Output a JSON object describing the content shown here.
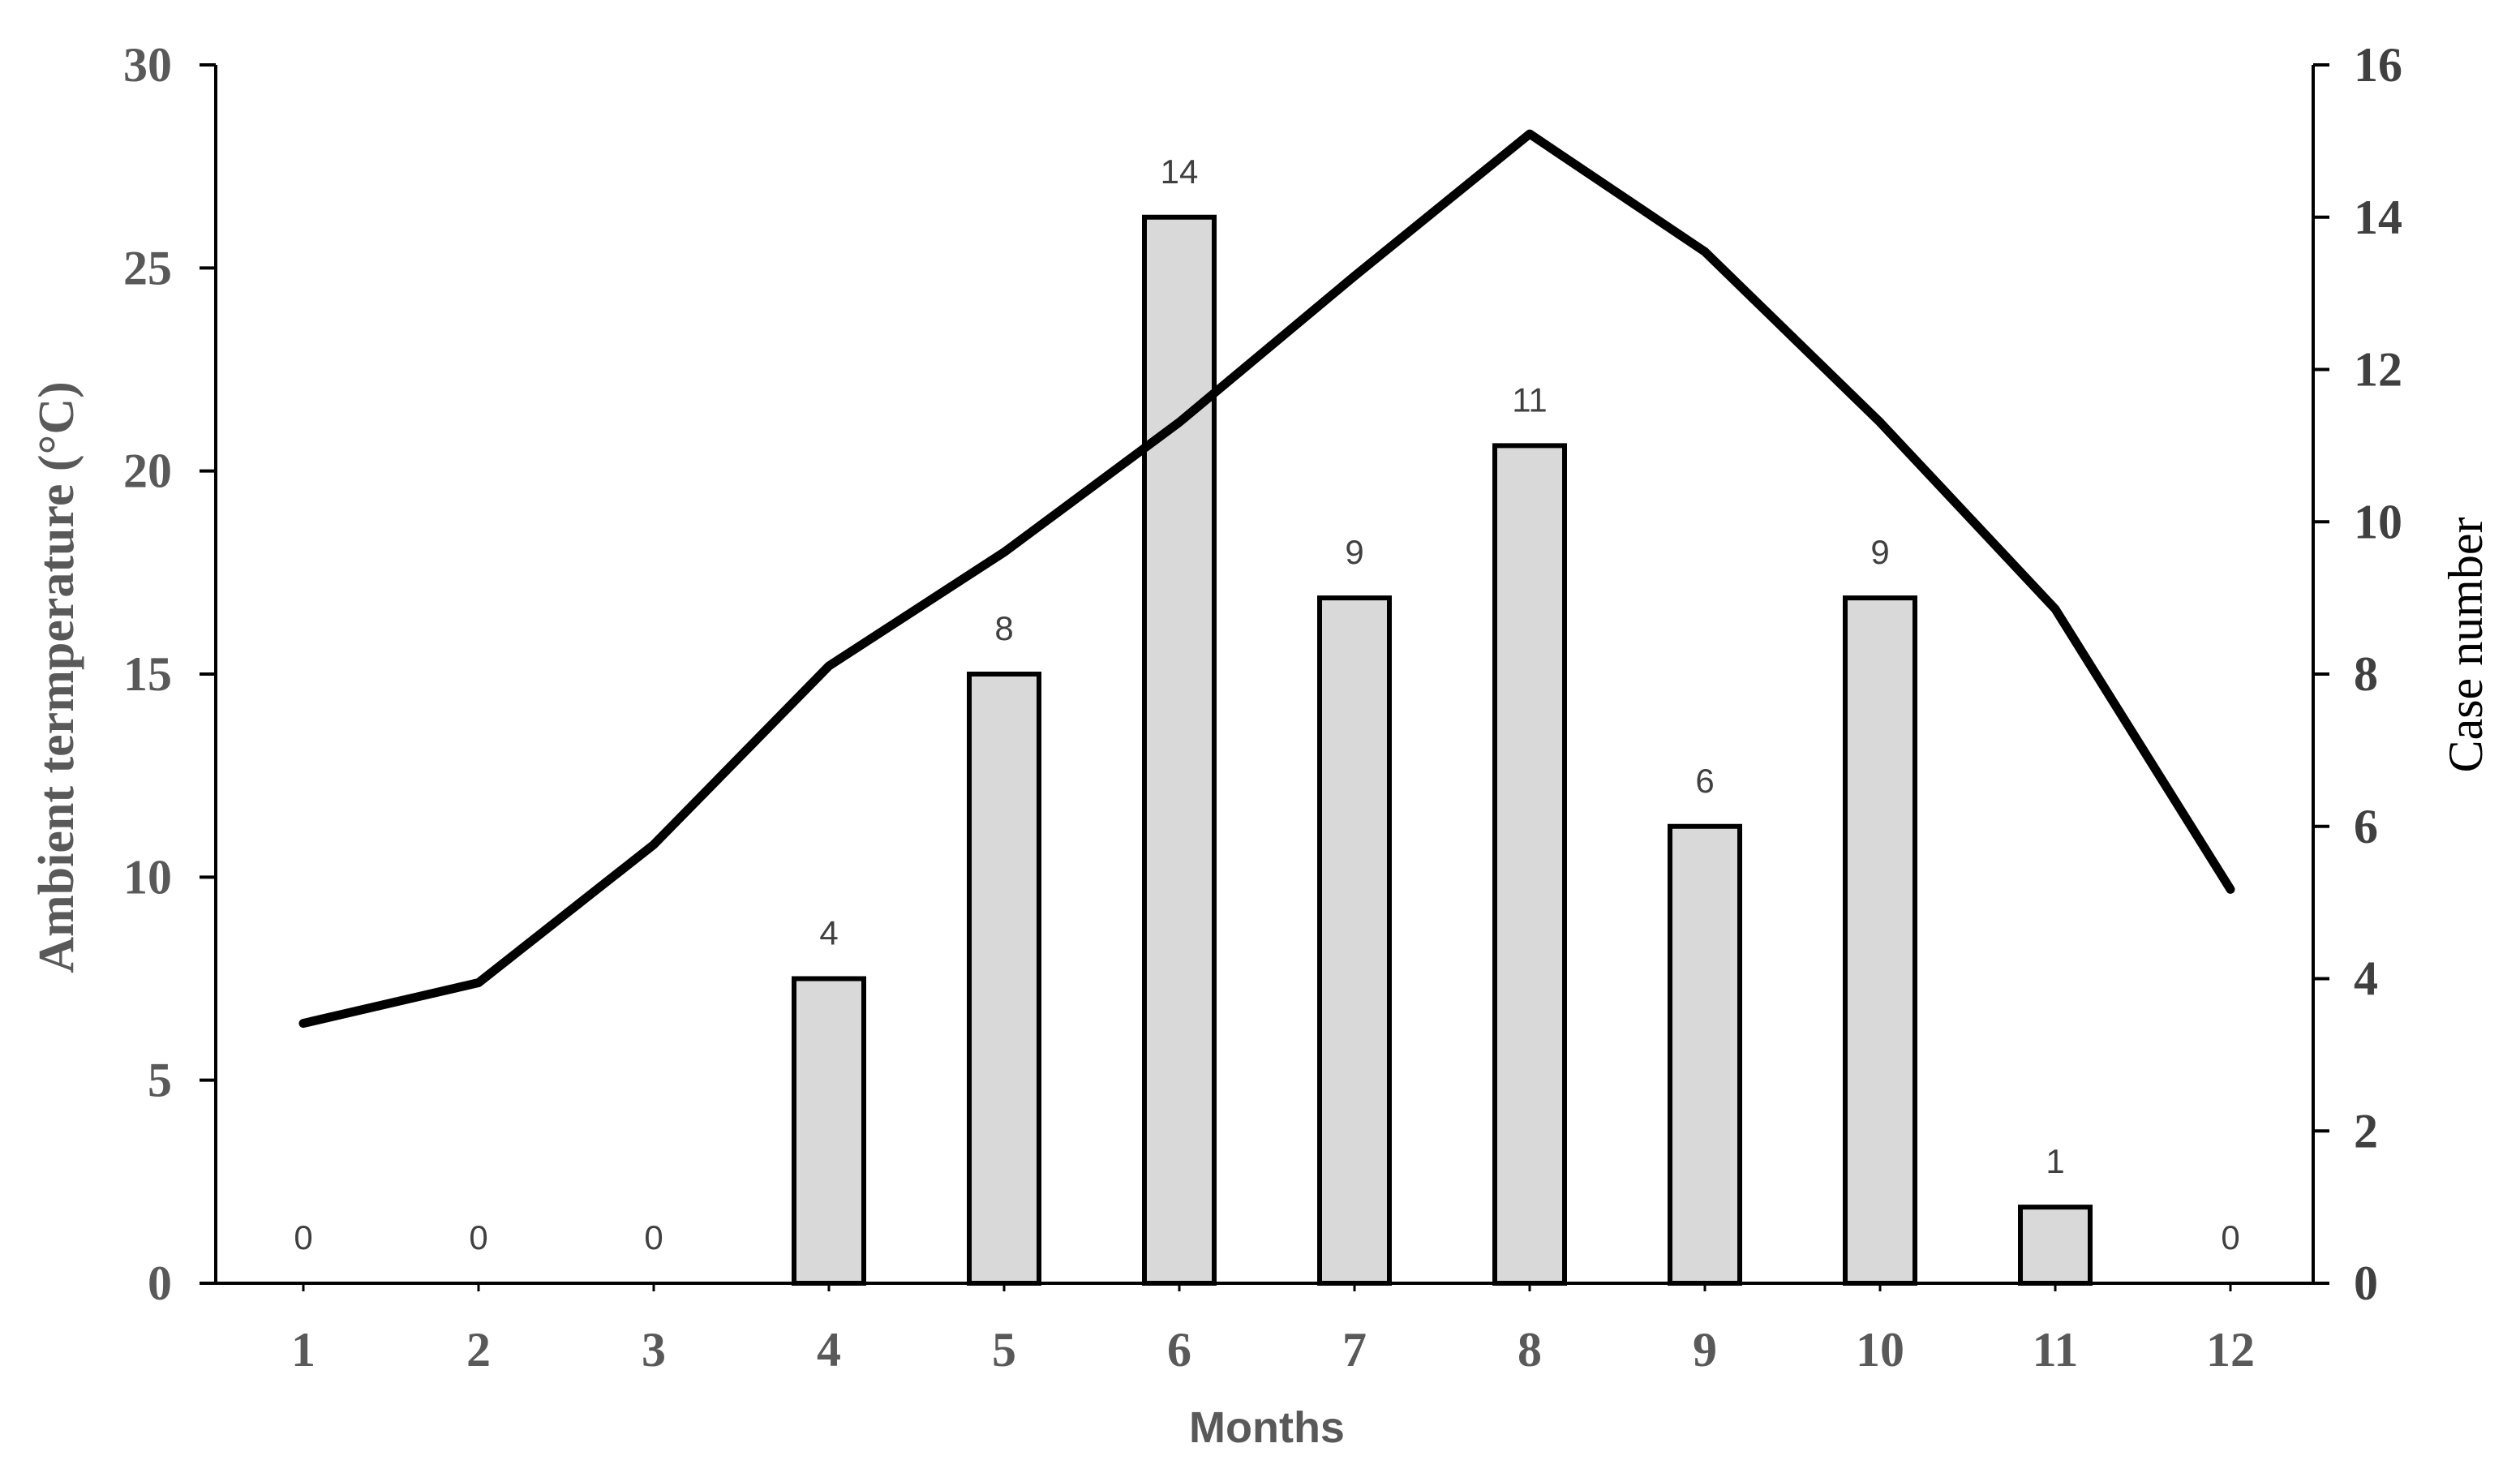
{
  "chart_data": {
    "type": "bar",
    "categories": [
      "1",
      "2",
      "3",
      "4",
      "5",
      "6",
      "7",
      "8",
      "9",
      "10",
      "11",
      "12"
    ],
    "series": [
      {
        "axis": "right",
        "kind": "bar",
        "values": [
          0,
          0,
          0,
          4,
          8,
          14,
          9,
          11,
          6,
          9,
          1,
          0
        ],
        "data_labels": [
          "0",
          "0",
          "0",
          "4",
          "8",
          "14",
          "9",
          "11",
          "6",
          "9",
          "1",
          "0"
        ]
      },
      {
        "axis": "left",
        "kind": "line",
        "values": [
          6.4,
          7.4,
          10.8,
          15.2,
          18,
          21.2,
          24.8,
          28.3,
          25.4,
          21.2,
          16.6,
          9.7
        ]
      }
    ],
    "xlabel": "Months",
    "ylabel_left": "Ambient termperature (°C)",
    "ylabel_right": "Case number",
    "ylim_left": [
      0,
      30
    ],
    "ylim_right": [
      0,
      16
    ],
    "yticks_left": [
      "0",
      "5",
      "10",
      "15",
      "20",
      "25",
      "30"
    ],
    "yticks_right": [
      "0",
      "2",
      "4",
      "6",
      "8",
      "10",
      "12",
      "14",
      "16"
    ],
    "grid": false,
    "legend": "none",
    "colors": {
      "bar_fill": "#d9d9d9",
      "bar_stroke": "#000000",
      "line": "#000000",
      "axis": "#000000",
      "left_text": "#595959",
      "right_text": "#404040"
    }
  }
}
